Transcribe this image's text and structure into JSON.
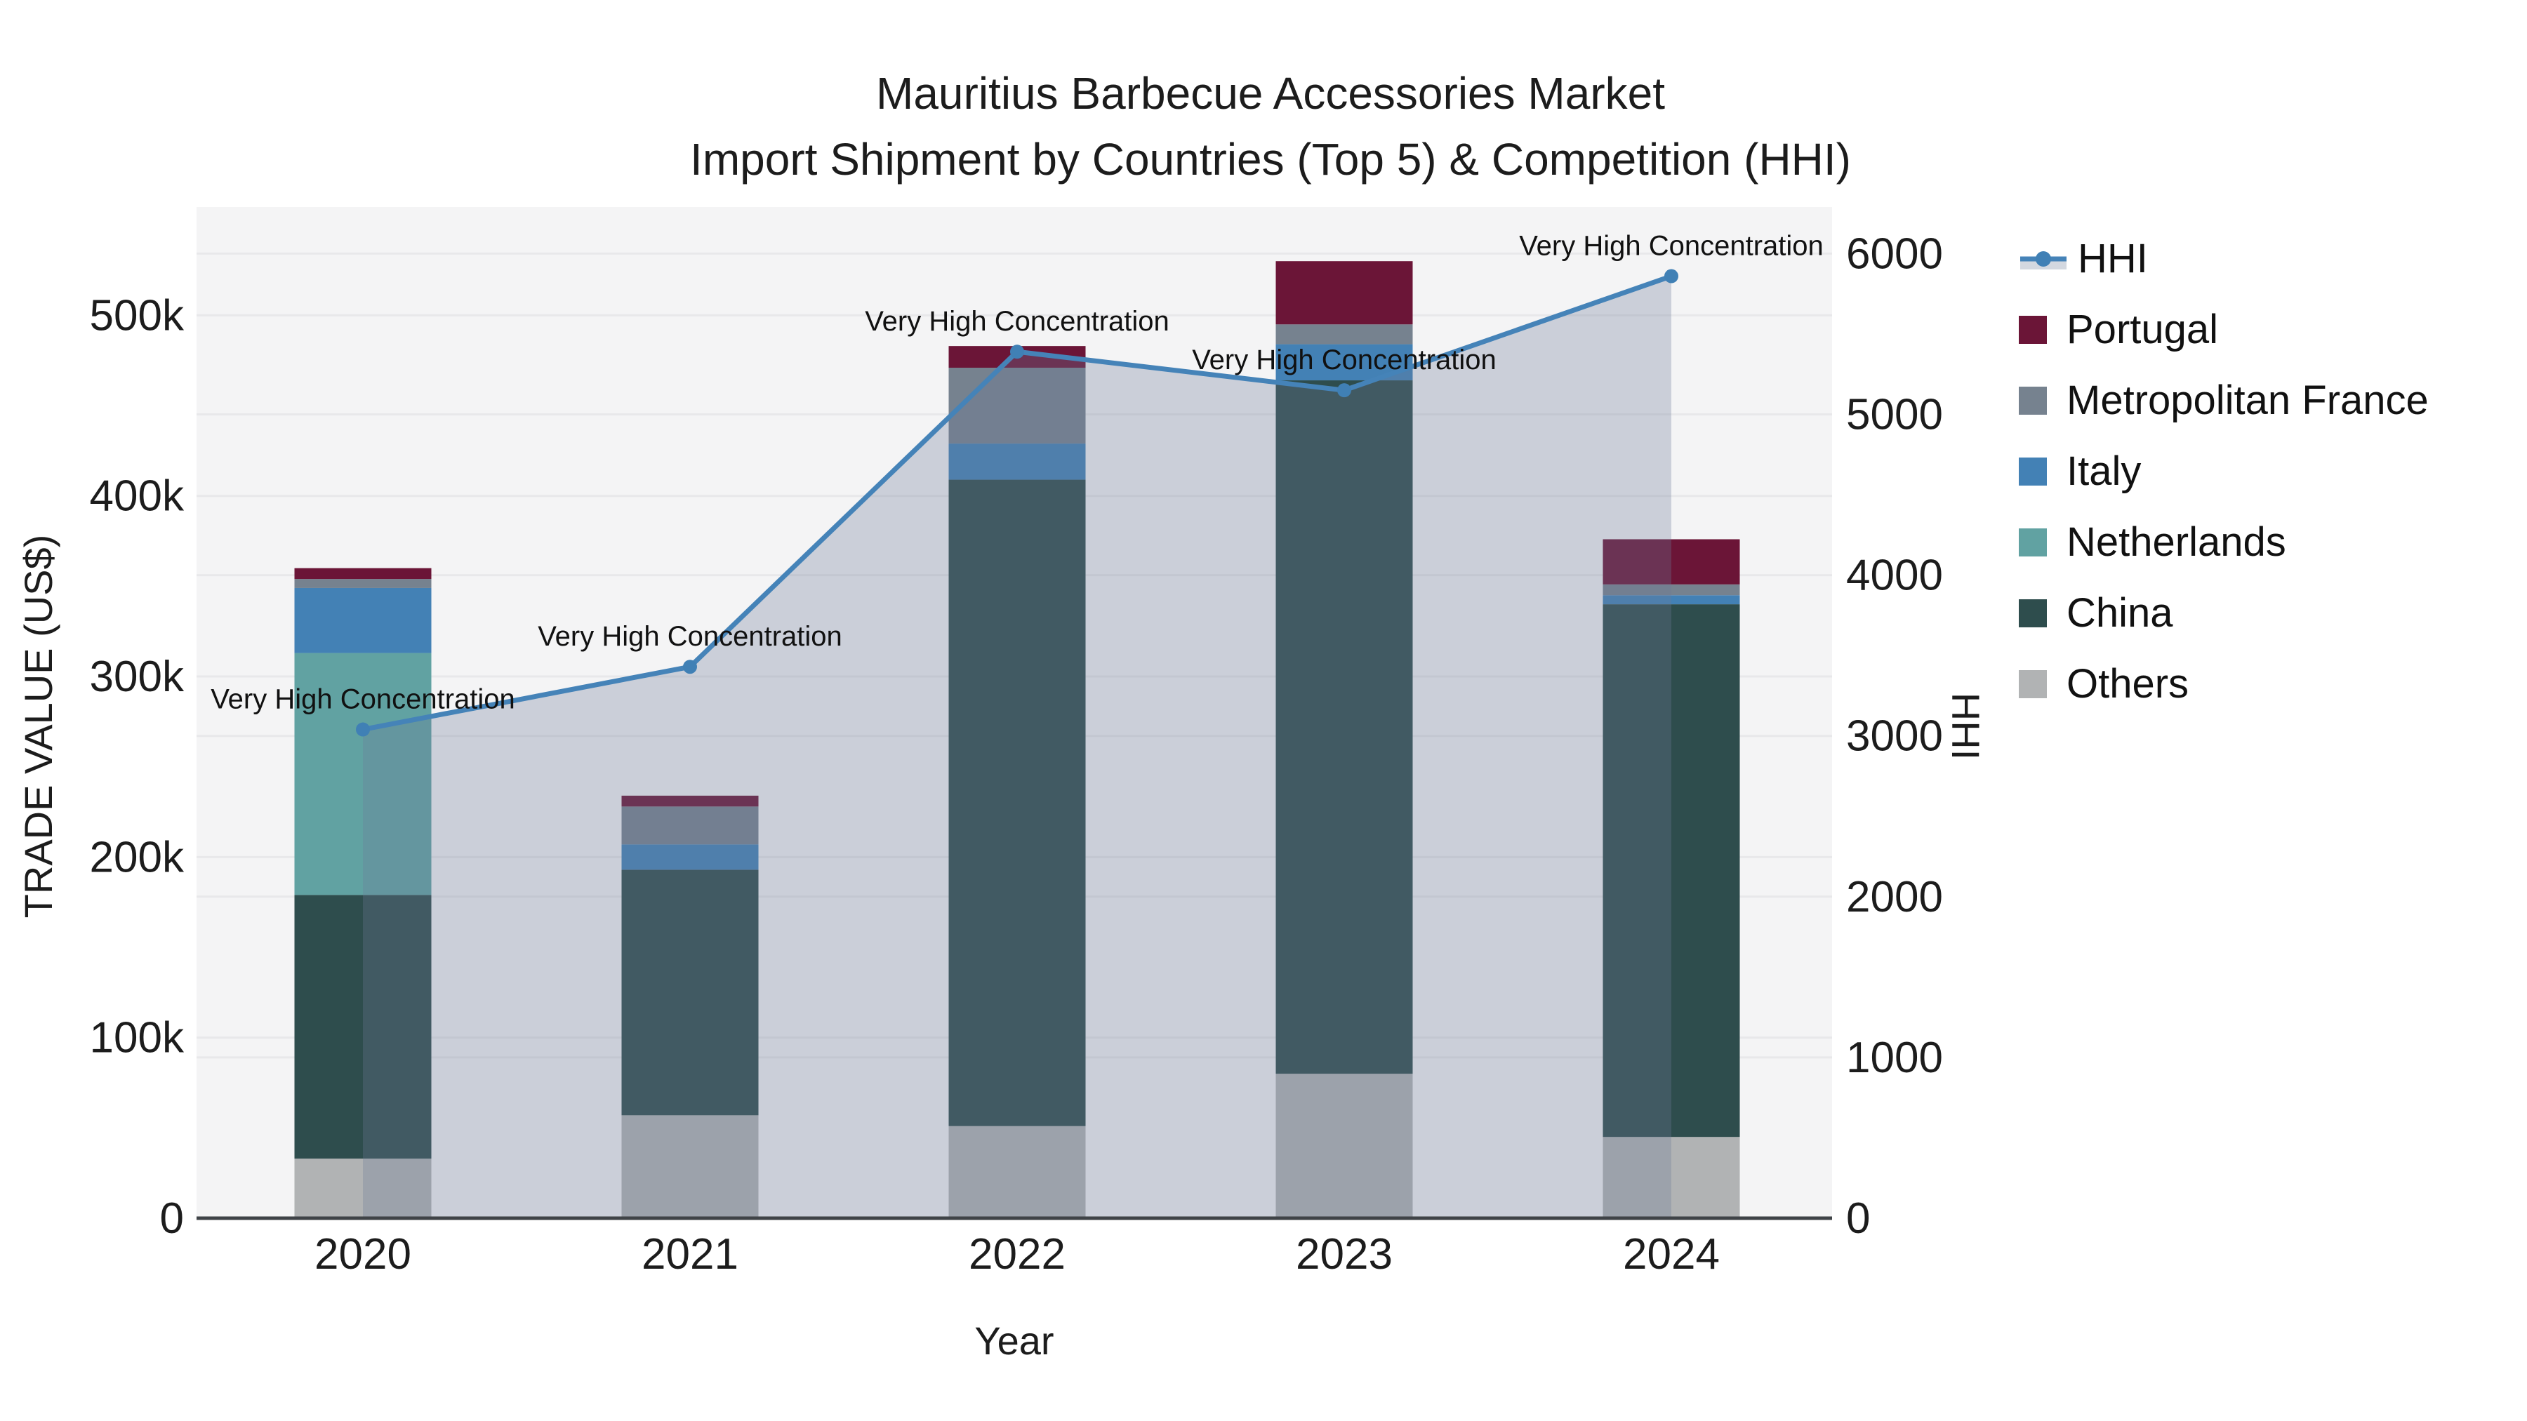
{
  "title": {
    "line1": "Mauritius Barbecue Accessories Market",
    "line2": "Import Shipment by Countries (Top 5) & Competition (HHI)"
  },
  "chart_data": {
    "type": "bar",
    "combo": "stacked-bar + line (secondary axis) with area fill",
    "categories": [
      "2020",
      "2021",
      "2022",
      "2023",
      "2024"
    ],
    "x_title": "Year",
    "y_left": {
      "title": "TRADE VALUE (US$)",
      "tick_labels": [
        "0",
        "100k",
        "200k",
        "300k",
        "400k",
        "500k"
      ],
      "tick_values": [
        0,
        100000,
        200000,
        300000,
        400000,
        500000
      ],
      "range": [
        0,
        560000
      ],
      "grid": true
    },
    "y_right": {
      "title": "HHI",
      "tick_labels": [
        "0",
        "1000",
        "2000",
        "3000",
        "4000",
        "5000",
        "6000"
      ],
      "tick_values": [
        0,
        1000,
        2000,
        3000,
        4000,
        5000,
        6000
      ],
      "range": [
        0,
        6290
      ],
      "grid": true
    },
    "bar_series": [
      {
        "name": "Others",
        "color": "#b1b3b4",
        "values": [
          33000,
          57000,
          51000,
          80000,
          45000
        ]
      },
      {
        "name": "China",
        "color": "#2e4d4d",
        "values": [
          146000,
          136000,
          358000,
          384000,
          295000
        ]
      },
      {
        "name": "Netherlands",
        "color": "#61a2a2",
        "values": [
          134000,
          0,
          0,
          0,
          0
        ]
      },
      {
        "name": "Italy",
        "color": "#4381b5",
        "values": [
          36000,
          14000,
          20000,
          20000,
          5000
        ]
      },
      {
        "name": "Metropolitan France",
        "color": "#76828f",
        "values": [
          5000,
          21000,
          42000,
          11000,
          6000
        ]
      },
      {
        "name": "Portugal",
        "color": "#6b1537",
        "values": [
          6000,
          6000,
          12000,
          35000,
          25000
        ]
      }
    ],
    "bar_totals": [
      360000,
      234000,
      483000,
      530000,
      376000
    ],
    "hhi": {
      "name": "HHI",
      "values": [
        3040,
        3430,
        5390,
        5150,
        5860
      ],
      "annotations": [
        "Very High Concentration",
        "Very High Concentration",
        "Very High Concentration",
        "Very High Concentration",
        "Very High Concentration"
      ],
      "color": "#4583b8",
      "marker_color": "#4080b5",
      "fill_color": "rgba(110,124,152,0.30)"
    },
    "legend": {
      "position": "right",
      "items": [
        "HHI",
        "Portugal",
        "Metropolitan France",
        "Italy",
        "Netherlands",
        "China",
        "Others"
      ]
    },
    "colors": {
      "plot_bg": "#f4f4f5",
      "grid": "#e8e8ea",
      "axis_line": "#3f4347",
      "text": "#1c1c1c",
      "annotation_text": "#111111",
      "legend_fill_swatch": "#d3d8e0"
    }
  }
}
